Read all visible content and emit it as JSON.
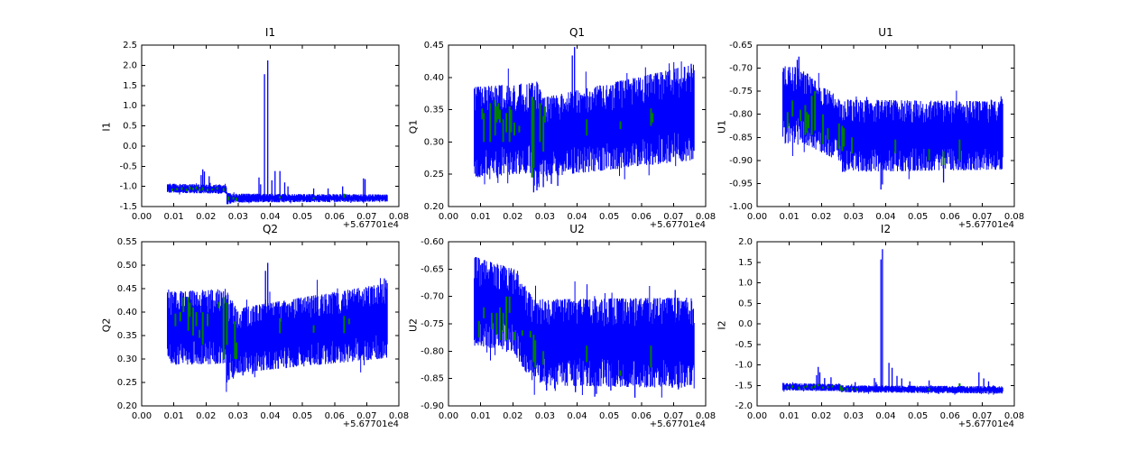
{
  "figure": {
    "background_color": "#ffffff",
    "line_color": "#0000ff",
    "marker_color": "#008000",
    "axis_color": "#000000",
    "x_offset_label": "+5.67701e4"
  },
  "chart_data": [
    {
      "type": "line",
      "title": "I1",
      "ylabel": "I1",
      "xlabel": "",
      "legend": "none",
      "grid": false,
      "xlim": [
        0.0,
        0.08
      ],
      "ylim": [
        -1.5,
        2.5
      ],
      "xticks": [
        "0.00",
        "0.01",
        "0.02",
        "0.03",
        "0.04",
        "0.05",
        "0.06",
        "0.07",
        "0.08"
      ],
      "yticks": [
        "-1.5",
        "-1.0",
        "-0.5",
        "0.0",
        "0.5",
        "1.0",
        "1.5",
        "2.0",
        "2.5"
      ],
      "x_offset": "+5.67701e4",
      "x_range": [
        0.008,
        0.0765
      ],
      "band": [
        [
          0.008,
          0.0265,
          -1.16,
          -1.18,
          -0.93,
          -0.97
        ],
        [
          0.0265,
          0.028,
          -1.45,
          -1.42,
          -1.15,
          -1.18
        ],
        [
          0.028,
          0.0765,
          -1.4,
          -1.38,
          -1.18,
          -1.2
        ]
      ],
      "spikes": [
        [
          0.0185,
          -0.72
        ],
        [
          0.019,
          -0.58
        ],
        [
          0.0195,
          -0.63
        ],
        [
          0.021,
          -0.75
        ],
        [
          0.0365,
          -0.78
        ],
        [
          0.037,
          -0.95
        ],
        [
          0.0382,
          1.78
        ],
        [
          0.0392,
          2.12
        ],
        [
          0.0405,
          -0.85
        ],
        [
          0.0415,
          -0.62
        ],
        [
          0.043,
          -0.62
        ],
        [
          0.0445,
          -0.9
        ],
        [
          0.0455,
          -1.0
        ],
        [
          0.0535,
          -1.05
        ],
        [
          0.058,
          -1.05
        ],
        [
          0.0625,
          -1.0
        ],
        [
          0.069,
          -0.8
        ],
        [
          0.0695,
          -0.82
        ]
      ],
      "greens": [
        [
          0.0095,
          -1.12,
          -1.05
        ],
        [
          0.011,
          -1.1,
          -1.04
        ],
        [
          0.0125,
          -1.09,
          -1.02
        ],
        [
          0.014,
          -1.12,
          -1.06
        ],
        [
          0.015,
          -1.08,
          -1.0
        ],
        [
          0.016,
          -1.1,
          -1.03
        ],
        [
          0.017,
          -1.07,
          -1.0
        ],
        [
          0.018,
          -1.12,
          -1.05
        ],
        [
          0.019,
          -1.1,
          -1.02
        ],
        [
          0.0205,
          -1.12,
          -1.06
        ],
        [
          0.022,
          -1.1,
          -1.05
        ],
        [
          0.0235,
          -1.08,
          -1.02
        ],
        [
          0.0255,
          -1.12,
          -1.04
        ],
        [
          0.027,
          -1.35,
          -1.25
        ],
        [
          0.0285,
          -1.33,
          -1.26
        ],
        [
          0.0295,
          -1.36,
          -1.28
        ],
        [
          0.043,
          -1.3,
          -1.24
        ],
        [
          0.0535,
          -1.32,
          -1.27
        ],
        [
          0.063,
          -1.28,
          -1.18
        ]
      ],
      "seed": 11
    },
    {
      "type": "line",
      "title": "Q1",
      "ylabel": "Q1",
      "xlabel": "",
      "legend": "none",
      "grid": false,
      "xlim": [
        0.0,
        0.08
      ],
      "ylim": [
        0.2,
        0.45
      ],
      "xticks": [
        "0.00",
        "0.01",
        "0.02",
        "0.03",
        "0.04",
        "0.05",
        "0.06",
        "0.07",
        "0.08"
      ],
      "yticks": [
        "0.20",
        "0.25",
        "0.30",
        "0.35",
        "0.40",
        "0.45"
      ],
      "x_offset": "+5.67701e4",
      "x_range": [
        0.008,
        0.0765
      ],
      "band": [
        [
          0.008,
          0.0265,
          0.245,
          0.252,
          0.385,
          0.392
        ],
        [
          0.0265,
          0.029,
          0.222,
          0.24,
          0.405,
          0.375
        ],
        [
          0.029,
          0.0765,
          0.245,
          0.272,
          0.368,
          0.42
        ]
      ],
      "spikes": [
        [
          0.0265,
          0.222
        ],
        [
          0.0275,
          0.225
        ],
        [
          0.0295,
          0.23
        ],
        [
          0.032,
          0.235
        ],
        [
          0.034,
          0.232
        ],
        [
          0.0385,
          0.434
        ],
        [
          0.0392,
          0.447
        ],
        [
          0.0755,
          0.421
        ]
      ],
      "greens": [
        [
          0.0105,
          0.335,
          0.352
        ],
        [
          0.011,
          0.3,
          0.345
        ],
        [
          0.013,
          0.3,
          0.36
        ],
        [
          0.0145,
          0.31,
          0.365
        ],
        [
          0.015,
          0.33,
          0.355
        ],
        [
          0.0155,
          0.335,
          0.36
        ],
        [
          0.016,
          0.33,
          0.35
        ],
        [
          0.017,
          0.3,
          0.335
        ],
        [
          0.018,
          0.315,
          0.345
        ],
        [
          0.019,
          0.3,
          0.355
        ],
        [
          0.0195,
          0.315,
          0.35
        ],
        [
          0.0205,
          0.31,
          0.33
        ],
        [
          0.022,
          0.315,
          0.325
        ],
        [
          0.026,
          0.245,
          0.37
        ],
        [
          0.0265,
          0.26,
          0.365
        ],
        [
          0.0285,
          0.3,
          0.36
        ],
        [
          0.0295,
          0.285,
          0.34
        ],
        [
          0.03,
          0.33,
          0.355
        ],
        [
          0.043,
          0.31,
          0.335
        ],
        [
          0.0535,
          0.32,
          0.332
        ],
        [
          0.063,
          0.325,
          0.352
        ],
        [
          0.0635,
          0.33,
          0.345
        ]
      ],
      "seed": 22
    },
    {
      "type": "line",
      "title": "U1",
      "ylabel": "U1",
      "xlabel": "",
      "legend": "none",
      "grid": false,
      "xlim": [
        0.0,
        0.08
      ],
      "ylim": [
        -1.0,
        -0.65
      ],
      "xticks": [
        "0.00",
        "0.01",
        "0.02",
        "0.03",
        "0.04",
        "0.05",
        "0.06",
        "0.07",
        "0.08"
      ],
      "yticks": [
        "-1.00",
        "-0.95",
        "-0.90",
        "-0.85",
        "-0.80",
        "-0.75",
        "-0.70",
        "-0.65"
      ],
      "x_offset": "+5.67701e4",
      "x_range": [
        0.008,
        0.0765
      ],
      "band": [
        [
          0.008,
          0.0135,
          -0.865,
          -0.86,
          -0.695,
          -0.7
        ],
        [
          0.0135,
          0.0265,
          -0.86,
          -0.905,
          -0.7,
          -0.77
        ],
        [
          0.0265,
          0.0765,
          -0.925,
          -0.92,
          -0.768,
          -0.772
        ]
      ],
      "spikes": [
        [
          0.0125,
          -0.682
        ],
        [
          0.013,
          -0.675
        ],
        [
          0.0385,
          -0.963
        ],
        [
          0.039,
          -0.952
        ],
        [
          0.058,
          -0.948
        ]
      ],
      "greens": [
        [
          0.0095,
          -0.83,
          -0.795
        ],
        [
          0.011,
          -0.805,
          -0.77
        ],
        [
          0.0135,
          -0.815,
          -0.79
        ],
        [
          0.015,
          -0.845,
          -0.78
        ],
        [
          0.0155,
          -0.84,
          -0.795
        ],
        [
          0.016,
          -0.83,
          -0.8
        ],
        [
          0.017,
          -0.845,
          -0.76
        ],
        [
          0.018,
          -0.835,
          -0.75
        ],
        [
          0.0205,
          -0.865,
          -0.8
        ],
        [
          0.022,
          -0.855,
          -0.83
        ],
        [
          0.0255,
          -0.875,
          -0.82
        ],
        [
          0.0265,
          -0.88,
          -0.825
        ],
        [
          0.027,
          -0.87,
          -0.83
        ],
        [
          0.0295,
          -0.885,
          -0.85
        ],
        [
          0.043,
          -0.885,
          -0.855
        ],
        [
          0.0535,
          -0.9,
          -0.875
        ],
        [
          0.058,
          -0.91,
          -0.88
        ],
        [
          0.063,
          -0.9,
          -0.855
        ]
      ],
      "seed": 33
    },
    {
      "type": "line",
      "title": "Q2",
      "ylabel": "Q2",
      "xlabel": "",
      "legend": "none",
      "grid": false,
      "xlim": [
        0.0,
        0.08
      ],
      "ylim": [
        0.2,
        0.55
      ],
      "xticks": [
        "0.00",
        "0.01",
        "0.02",
        "0.03",
        "0.04",
        "0.05",
        "0.06",
        "0.07",
        "0.08"
      ],
      "yticks": [
        "0.20",
        "0.25",
        "0.30",
        "0.35",
        "0.40",
        "0.45",
        "0.50",
        "0.55"
      ],
      "x_offset": "+5.67701e4",
      "x_range": [
        0.008,
        0.0765
      ],
      "band": [
        [
          0.008,
          0.026,
          0.287,
          0.29,
          0.443,
          0.45
        ],
        [
          0.026,
          0.0295,
          0.25,
          0.268,
          0.45,
          0.408
        ],
        [
          0.0295,
          0.0765,
          0.27,
          0.302,
          0.408,
          0.462
        ]
      ],
      "spikes": [
        [
          0.0265,
          0.25
        ],
        [
          0.027,
          0.255
        ],
        [
          0.0285,
          0.262
        ],
        [
          0.0315,
          0.265
        ],
        [
          0.0345,
          0.268
        ],
        [
          0.0385,
          0.488
        ],
        [
          0.0392,
          0.505
        ],
        [
          0.0755,
          0.472
        ],
        [
          0.076,
          0.468
        ]
      ],
      "greens": [
        [
          0.0105,
          0.37,
          0.397
        ],
        [
          0.012,
          0.38,
          0.4
        ],
        [
          0.013,
          0.4,
          0.432
        ],
        [
          0.0145,
          0.36,
          0.432
        ],
        [
          0.015,
          0.39,
          0.42
        ],
        [
          0.016,
          0.35,
          0.41
        ],
        [
          0.017,
          0.37,
          0.4
        ],
        [
          0.018,
          0.345,
          0.362
        ],
        [
          0.019,
          0.33,
          0.4
        ],
        [
          0.0205,
          0.37,
          0.397
        ],
        [
          0.024,
          0.408,
          0.422
        ],
        [
          0.0255,
          0.3,
          0.432
        ],
        [
          0.0265,
          0.33,
          0.42
        ],
        [
          0.029,
          0.3,
          0.38
        ],
        [
          0.0295,
          0.3,
          0.335
        ],
        [
          0.043,
          0.355,
          0.387
        ],
        [
          0.0535,
          0.356,
          0.372
        ],
        [
          0.063,
          0.355,
          0.392
        ],
        [
          0.0645,
          0.374,
          0.386
        ]
      ],
      "seed": 44
    },
    {
      "type": "line",
      "title": "U2",
      "ylabel": "U2",
      "xlabel": "",
      "legend": "none",
      "grid": false,
      "xlim": [
        0.0,
        0.08
      ],
      "ylim": [
        -0.9,
        -0.6
      ],
      "xticks": [
        "0.00",
        "0.01",
        "0.02",
        "0.03",
        "0.04",
        "0.05",
        "0.06",
        "0.07",
        "0.08"
      ],
      "yticks": [
        "-0.90",
        "-0.85",
        "-0.80",
        "-0.75",
        "-0.70",
        "-0.65",
        "-0.60"
      ],
      "x_offset": "+5.67701e4",
      "x_range": [
        0.008,
        0.0765
      ],
      "band": [
        [
          0.008,
          0.0205,
          -0.79,
          -0.8,
          -0.627,
          -0.65
        ],
        [
          0.0205,
          0.0265,
          -0.805,
          -0.86,
          -0.65,
          -0.705
        ],
        [
          0.0265,
          0.0765,
          -0.862,
          -0.868,
          -0.705,
          -0.702
        ]
      ],
      "spikes": [
        [
          0.0305,
          -0.872
        ],
        [
          0.033,
          -0.868
        ],
        [
          0.0395,
          -0.875
        ],
        [
          0.0455,
          -0.883
        ],
        [
          0.046,
          -0.878
        ],
        [
          0.0505,
          -0.872
        ],
        [
          0.058,
          -0.885
        ],
        [
          0.0705,
          -0.688
        ],
        [
          0.0715,
          -0.87
        ]
      ],
      "greens": [
        [
          0.0095,
          -0.775,
          -0.745
        ],
        [
          0.011,
          -0.74,
          -0.72
        ],
        [
          0.0135,
          -0.76,
          -0.73
        ],
        [
          0.015,
          -0.77,
          -0.73
        ],
        [
          0.016,
          -0.78,
          -0.72
        ],
        [
          0.017,
          -0.765,
          -0.73
        ],
        [
          0.018,
          -0.78,
          -0.7
        ],
        [
          0.019,
          -0.73,
          -0.7
        ],
        [
          0.0205,
          -0.78,
          -0.765
        ],
        [
          0.023,
          -0.772,
          -0.762
        ],
        [
          0.0255,
          -0.775,
          -0.763
        ],
        [
          0.0265,
          -0.82,
          -0.77
        ],
        [
          0.027,
          -0.83,
          -0.78
        ],
        [
          0.0295,
          -0.825,
          -0.8
        ],
        [
          0.043,
          -0.82,
          -0.79
        ],
        [
          0.0535,
          -0.845,
          -0.835
        ],
        [
          0.063,
          -0.83,
          -0.79
        ]
      ],
      "seed": 55
    },
    {
      "type": "line",
      "title": "I2",
      "ylabel": "I2",
      "xlabel": "",
      "legend": "none",
      "grid": false,
      "xlim": [
        0.0,
        0.08
      ],
      "ylim": [
        -2.0,
        2.0
      ],
      "xticks": [
        "0.00",
        "0.01",
        "0.02",
        "0.03",
        "0.04",
        "0.05",
        "0.06",
        "0.07",
        "0.08"
      ],
      "yticks": [
        "-2.0",
        "-1.5",
        "-1.0",
        "-0.5",
        "0.0",
        "0.5",
        "1.0",
        "1.5",
        "2.0"
      ],
      "x_offset": "+5.67701e4",
      "x_range": [
        0.008,
        0.0765
      ],
      "band": [
        [
          0.008,
          0.026,
          -1.62,
          -1.64,
          -1.44,
          -1.47
        ],
        [
          0.026,
          0.0765,
          -1.67,
          -1.7,
          -1.5,
          -1.52
        ]
      ],
      "spikes": [
        [
          0.0185,
          -1.25
        ],
        [
          0.019,
          -1.05
        ],
        [
          0.0195,
          -1.18
        ],
        [
          0.021,
          -1.32
        ],
        [
          0.023,
          -1.3
        ],
        [
          0.0305,
          -1.42
        ],
        [
          0.0365,
          -1.32
        ],
        [
          0.037,
          -1.42
        ],
        [
          0.0385,
          1.57
        ],
        [
          0.039,
          1.82
        ],
        [
          0.041,
          -0.95
        ],
        [
          0.042,
          -1.07
        ],
        [
          0.0435,
          -1.27
        ],
        [
          0.045,
          -1.33
        ],
        [
          0.0475,
          -1.4
        ],
        [
          0.0535,
          -1.38
        ],
        [
          0.069,
          -1.18
        ],
        [
          0.0705,
          -1.33
        ],
        [
          0.072,
          -1.4
        ]
      ],
      "greens": [
        [
          0.0095,
          -1.58,
          -1.52
        ],
        [
          0.011,
          -1.56,
          -1.5
        ],
        [
          0.013,
          -1.6,
          -1.53
        ],
        [
          0.0145,
          -1.57,
          -1.52
        ],
        [
          0.0155,
          -1.55,
          -1.5
        ],
        [
          0.017,
          -1.58,
          -1.52
        ],
        [
          0.018,
          -1.56,
          -1.5
        ],
        [
          0.019,
          -1.52,
          -1.47
        ],
        [
          0.0205,
          -1.58,
          -1.53
        ],
        [
          0.022,
          -1.57,
          -1.52
        ],
        [
          0.0235,
          -1.55,
          -1.5
        ],
        [
          0.026,
          -1.62,
          -1.5
        ],
        [
          0.0265,
          -1.64,
          -1.55
        ],
        [
          0.028,
          -1.62,
          -1.56
        ],
        [
          0.0295,
          -1.6,
          -1.55
        ],
        [
          0.031,
          -1.62,
          -1.57
        ],
        [
          0.0535,
          -1.63,
          -1.57
        ],
        [
          0.063,
          -1.52,
          -1.45
        ]
      ],
      "seed": 66
    }
  ]
}
